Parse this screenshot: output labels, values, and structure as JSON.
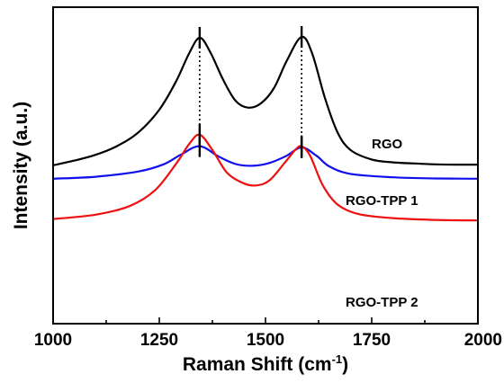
{
  "chart_data": {
    "type": "line",
    "xlabel": "Raman Shift (cm",
    "xlabel_sup": "-1",
    "xlabel_end": ")",
    "ylabel": "Intensity (a.u.)",
    "xlim": [
      1000,
      2000
    ],
    "x_ticks": [
      "1000",
      "1250",
      "1500",
      "1750",
      "2000"
    ],
    "y_ticks_shown": false,
    "grid": false,
    "peak_positions": [
      1345,
      1585
    ],
    "series": [
      {
        "name": "RGO",
        "color": "#000000",
        "points": [
          [
            1000,
            0.82
          ],
          [
            1050,
            0.98
          ],
          [
            1100,
            1.18
          ],
          [
            1150,
            1.48
          ],
          [
            1200,
            1.95
          ],
          [
            1250,
            2.75
          ],
          [
            1290,
            3.75
          ],
          [
            1320,
            4.7
          ],
          [
            1345,
            5.25
          ],
          [
            1370,
            4.75
          ],
          [
            1400,
            3.8
          ],
          [
            1430,
            3.05
          ],
          [
            1460,
            2.82
          ],
          [
            1490,
            2.98
          ],
          [
            1520,
            3.5
          ],
          [
            1550,
            4.45
          ],
          [
            1585,
            5.28
          ],
          [
            1610,
            4.7
          ],
          [
            1640,
            3.15
          ],
          [
            1670,
            1.95
          ],
          [
            1700,
            1.35
          ],
          [
            1750,
            1.02
          ],
          [
            1800,
            0.92
          ],
          [
            1850,
            0.88
          ],
          [
            1900,
            0.85
          ],
          [
            1950,
            0.84
          ],
          [
            2000,
            0.84
          ]
        ]
      },
      {
        "name": "RGO-TPP 1",
        "color": "#1010ee",
        "points": [
          [
            1000,
            0.35
          ],
          [
            1100,
            0.42
          ],
          [
            1200,
            0.6
          ],
          [
            1260,
            0.85
          ],
          [
            1300,
            1.18
          ],
          [
            1345,
            1.48
          ],
          [
            1390,
            1.12
          ],
          [
            1430,
            0.86
          ],
          [
            1470,
            0.8
          ],
          [
            1510,
            0.9
          ],
          [
            1550,
            1.15
          ],
          [
            1585,
            1.44
          ],
          [
            1620,
            1.15
          ],
          [
            1650,
            0.78
          ],
          [
            1700,
            0.52
          ],
          [
            1800,
            0.4
          ],
          [
            1900,
            0.36
          ],
          [
            2000,
            0.35
          ]
        ]
      },
      {
        "name": "RGO-TPP 2",
        "color": "#ee1010",
        "points": [
          [
            1000,
            -1.05
          ],
          [
            1100,
            -0.9
          ],
          [
            1180,
            -0.6
          ],
          [
            1240,
            -0.05
          ],
          [
            1290,
            0.88
          ],
          [
            1320,
            1.55
          ],
          [
            1345,
            1.88
          ],
          [
            1375,
            1.35
          ],
          [
            1410,
            0.55
          ],
          [
            1450,
            0.18
          ],
          [
            1480,
            0.12
          ],
          [
            1510,
            0.3
          ],
          [
            1545,
            0.9
          ],
          [
            1570,
            1.35
          ],
          [
            1585,
            1.48
          ],
          [
            1605,
            1.15
          ],
          [
            1635,
            0.12
          ],
          [
            1670,
            -0.55
          ],
          [
            1720,
            -0.88
          ],
          [
            1800,
            -1.02
          ],
          [
            1900,
            -1.08
          ],
          [
            2000,
            -1.1
          ]
        ]
      }
    ]
  },
  "labels": {
    "rgo": "RGO",
    "tpp1": "RGO-TPP 1",
    "tpp2": "RGO-TPP 2"
  }
}
